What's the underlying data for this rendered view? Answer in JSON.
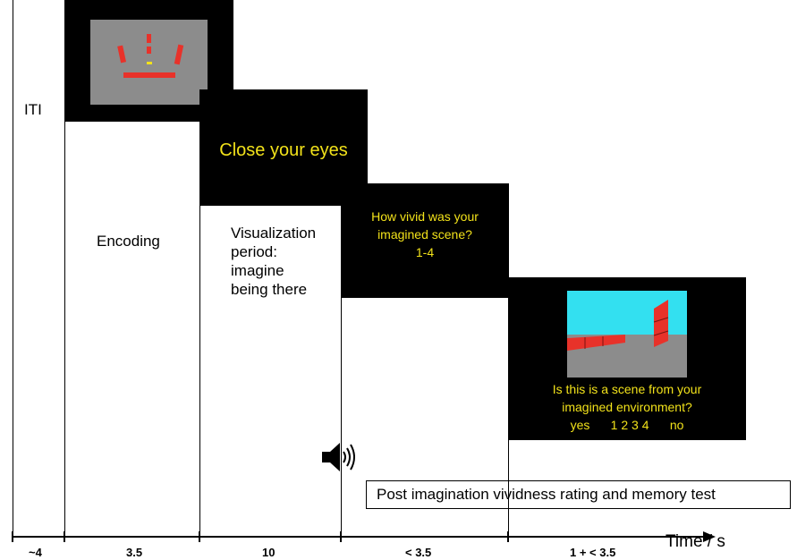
{
  "phases": {
    "iti": "ITI",
    "encoding": "Encoding",
    "visualization": [
      "Visualization",
      "period:",
      "imagine",
      "being there"
    ]
  },
  "screens": {
    "close_eyes": "Close your eyes",
    "vividness": [
      "How vivid was your",
      "imagined scene?",
      "1-4"
    ],
    "memory": [
      "Is this is a scene from your",
      "imagined environment?",
      "yes      1 2 3 4      no"
    ]
  },
  "audio_box": "Post imagination vividness rating and memory test",
  "timeline": {
    "durations": [
      "~4",
      "3.5",
      "10",
      "< 3.5",
      "1 + < 3.5"
    ],
    "axis_label": "Time / s"
  },
  "colors": {
    "screen_bg": "#000000",
    "text_yellow": "#f2e21a",
    "wall_red": "#e8322a",
    "floor_gray": "#8c8c8c",
    "sky_cyan": "#33e0f0"
  },
  "icons": {
    "speaker": "speaker-sound-icon"
  }
}
